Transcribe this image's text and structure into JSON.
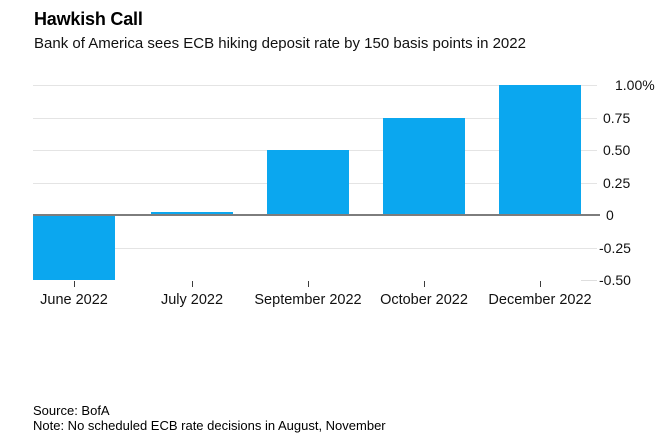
{
  "header": {
    "title": "Hawkish Call",
    "subtitle": "Bank of America sees ECB hiking deposit rate by 150 basis points in 2022"
  },
  "chart_data": {
    "type": "bar",
    "title": "Hawkish Call",
    "subtitle": "Bank of America sees ECB hiking deposit rate by 150 basis points in 2022",
    "categories": [
      "June 2022",
      "July 2022",
      "September 2022",
      "October 2022",
      "December 2022"
    ],
    "values": [
      -0.5,
      0.0,
      0.5,
      0.75,
      1.0
    ],
    "unit": "%",
    "xlabel": "",
    "ylabel": "",
    "ylim": [
      -0.5,
      1.0
    ],
    "yticks": [
      {
        "value": 1.0,
        "label": "1.00%"
      },
      {
        "value": 0.75,
        "label": "0.75"
      },
      {
        "value": 0.5,
        "label": "0.50"
      },
      {
        "value": 0.25,
        "label": "0.25"
      },
      {
        "value": 0.0,
        "label": "0"
      },
      {
        "value": -0.25,
        "label": "-0.25"
      },
      {
        "value": -0.5,
        "label": "-0.50"
      }
    ],
    "legend": "none",
    "grid": "horizontal light-gray lines at 0.25 steps, dark zero baseline, tick-only at -0.50, y labels on right",
    "bar_color": "#0ba7ef",
    "zero_line_color": "#7d7d7d",
    "grid_color": "#e4e4e4",
    "tick_color": "#3c3c3c"
  },
  "footer": {
    "source": "Source: BofA",
    "note": "Note: No scheduled ECB rate decisions in August, November"
  }
}
